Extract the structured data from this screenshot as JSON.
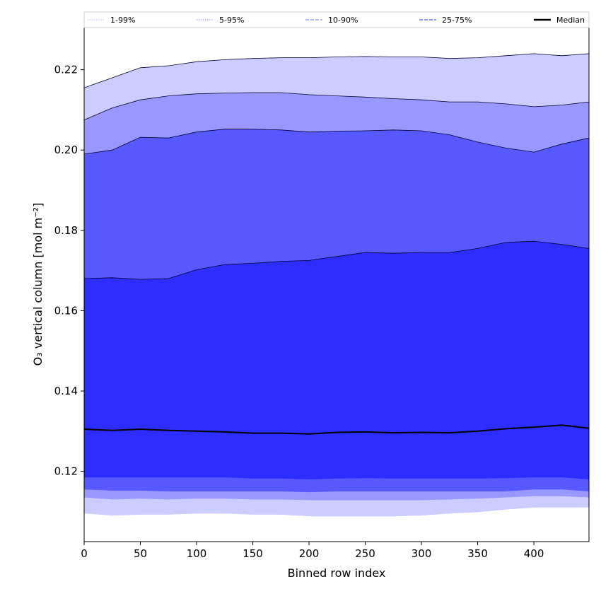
{
  "chart_data": {
    "type": "area",
    "xlabel": "Binned row index",
    "ylabel": "O₃ vertical column [mol m⁻²]",
    "xlim": [
      0,
      449
    ],
    "ylim": [
      0.1025,
      0.2305
    ],
    "x_ticks": [
      0,
      50,
      100,
      150,
      200,
      250,
      300,
      350,
      400
    ],
    "y_ticks": [
      0.12,
      0.14,
      0.16,
      0.18,
      0.2,
      0.22
    ],
    "y_tick_labels": [
      "0.12",
      "0.14",
      "0.16",
      "0.18",
      "0.20",
      "0.22"
    ],
    "grid": false,
    "legend_placement": "top",
    "x": [
      0,
      25,
      50,
      75,
      100,
      125,
      150,
      175,
      200,
      225,
      250,
      275,
      300,
      325,
      350,
      375,
      400,
      425,
      449
    ],
    "bands": [
      {
        "name": "1-99%",
        "color": "#ccccff",
        "line_color": "#b0b0ff",
        "upper": [
          0.2155,
          0.218,
          0.2205,
          0.221,
          0.222,
          0.2225,
          0.2228,
          0.223,
          0.223,
          0.2232,
          0.2233,
          0.2232,
          0.2232,
          0.2228,
          0.223,
          0.2235,
          0.224,
          0.2235,
          0.224
        ],
        "lower": [
          0.1095,
          0.109,
          0.1092,
          0.1092,
          0.1095,
          0.1095,
          0.1092,
          0.1092,
          0.1088,
          0.1088,
          0.1088,
          0.1088,
          0.109,
          0.1095,
          0.1098,
          0.1105,
          0.111,
          0.111,
          0.111
        ]
      },
      {
        "name": "5-95%",
        "color": "#9898ff",
        "line_color": "#8080ff",
        "upper": [
          0.2075,
          0.2105,
          0.2125,
          0.2135,
          0.214,
          0.2142,
          0.2143,
          0.2143,
          0.2138,
          0.2135,
          0.2132,
          0.2128,
          0.2125,
          0.212,
          0.212,
          0.2115,
          0.2108,
          0.2112,
          0.212
        ],
        "lower": [
          0.1135,
          0.113,
          0.1132,
          0.113,
          0.1132,
          0.1132,
          0.113,
          0.113,
          0.1128,
          0.1128,
          0.1128,
          0.1128,
          0.1128,
          0.113,
          0.1132,
          0.1135,
          0.1138,
          0.1138,
          0.1135
        ]
      },
      {
        "name": "10-90%",
        "color": "#5858ff",
        "line_color": "#6a6aff",
        "upper": [
          0.199,
          0.2,
          0.2032,
          0.203,
          0.2045,
          0.2052,
          0.2052,
          0.205,
          0.2045,
          0.2047,
          0.2048,
          0.205,
          0.2048,
          0.2038,
          0.202,
          0.2005,
          0.1995,
          0.2015,
          0.203
        ],
        "lower": [
          0.1155,
          0.1152,
          0.1152,
          0.115,
          0.115,
          0.115,
          0.115,
          0.115,
          0.1148,
          0.115,
          0.115,
          0.115,
          0.115,
          0.115,
          0.115,
          0.115,
          0.1155,
          0.1155,
          0.115
        ]
      },
      {
        "name": "25-75%",
        "color": "#2d2dff",
        "line_color": "#4040ff",
        "upper": [
          0.168,
          0.1682,
          0.1678,
          0.168,
          0.1702,
          0.1715,
          0.1718,
          0.1723,
          0.1725,
          0.1735,
          0.1745,
          0.1743,
          0.1745,
          0.1745,
          0.1755,
          0.177,
          0.1773,
          0.1765,
          0.1755
        ],
        "lower": [
          0.1185,
          0.1185,
          0.1185,
          0.1185,
          0.1185,
          0.1185,
          0.1182,
          0.1182,
          0.118,
          0.1182,
          0.1183,
          0.1182,
          0.1182,
          0.1182,
          0.1182,
          0.1183,
          0.1185,
          0.1185,
          0.118
        ]
      }
    ],
    "median": {
      "name": "Median",
      "color": "#000000",
      "values": [
        0.1305,
        0.1302,
        0.1305,
        0.1302,
        0.13,
        0.1298,
        0.1295,
        0.1295,
        0.1293,
        0.1297,
        0.1298,
        0.1296,
        0.1297,
        0.1296,
        0.13,
        0.1306,
        0.131,
        0.1315,
        0.1307
      ]
    },
    "legend": [
      {
        "label": "1-99%",
        "color": "#c8c8ff",
        "style": "dotted"
      },
      {
        "label": "5-95%",
        "color": "#a8a8ff",
        "style": "dotted"
      },
      {
        "label": "10-90%",
        "color": "#8888ff",
        "style": "dashed"
      },
      {
        "label": "25-75%",
        "color": "#5555ff",
        "style": "dashed"
      },
      {
        "label": "Median",
        "color": "#000000",
        "style": "solid"
      }
    ]
  }
}
